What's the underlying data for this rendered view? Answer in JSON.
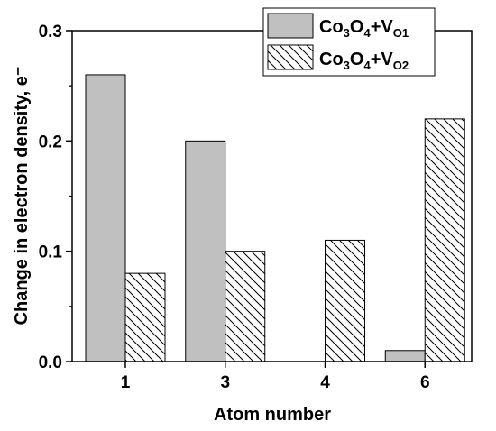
{
  "chart_data": {
    "type": "bar",
    "categories": [
      "1",
      "3",
      "4",
      "6"
    ],
    "series": [
      {
        "name": "Co3O4+VO1",
        "legend_parts": [
          {
            "text": "Co",
            "sub": false
          },
          {
            "text": "3",
            "sub": true
          },
          {
            "text": "O",
            "sub": false
          },
          {
            "text": "4",
            "sub": true
          },
          {
            "text": "+V",
            "sub": false
          },
          {
            "text": "O1",
            "sub": true
          }
        ],
        "values": [
          0.26,
          0.2,
          0.0,
          0.01
        ],
        "color": "#c0c0c0",
        "pattern": "solid"
      },
      {
        "name": "Co3O4+VO2",
        "legend_parts": [
          {
            "text": "Co",
            "sub": false
          },
          {
            "text": "3",
            "sub": true
          },
          {
            "text": "O",
            "sub": false
          },
          {
            "text": "4",
            "sub": true
          },
          {
            "text": "+V",
            "sub": false
          },
          {
            "text": "O2",
            "sub": true
          }
        ],
        "values": [
          0.08,
          0.1,
          0.11,
          0.22
        ],
        "color": "#ffffff",
        "pattern": "diagonal-hatch"
      }
    ],
    "xlabel": "Atom number",
    "ylabel": "Change in electron density, e⁻",
    "ylim": [
      0,
      0.3
    ],
    "yticks": [
      "0.0",
      "0.1",
      "0.2",
      "0.3"
    ],
    "grid": false,
    "legend_position": "top-right"
  }
}
